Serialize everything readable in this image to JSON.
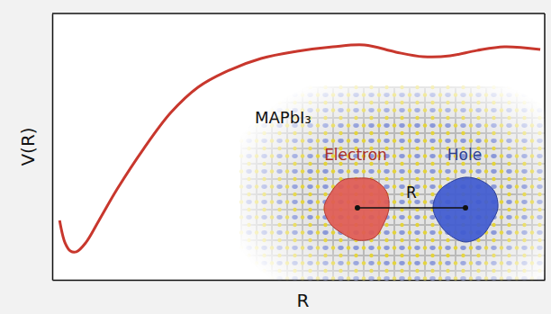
{
  "chart_data": {
    "type": "line",
    "x_label": "R",
    "y_label": "V(R)",
    "x": [
      0.15,
      0.26,
      0.37,
      0.49,
      0.68,
      0.95,
      1.32,
      1.86,
      2.41,
      2.96,
      3.51,
      4.24,
      4.97,
      5.7,
      6.34,
      6.98,
      7.53,
      8.08,
      8.62,
      9.18,
      9.91
    ],
    "values": [
      2.23,
      1.39,
      1.08,
      1.05,
      1.39,
      2.23,
      3.41,
      4.93,
      6.28,
      7.23,
      7.8,
      8.31,
      8.58,
      8.75,
      8.82,
      8.55,
      8.38,
      8.41,
      8.61,
      8.75,
      8.65
    ],
    "color": "#c8372d",
    "xlim": [
      0,
      10
    ],
    "ylim": [
      0,
      10
    ],
    "xticks": [],
    "yticks": [],
    "tick_labels": false,
    "grid": false,
    "annotations": [
      "MAPbI₃",
      "Electron",
      "Hole",
      "R"
    ]
  }
}
